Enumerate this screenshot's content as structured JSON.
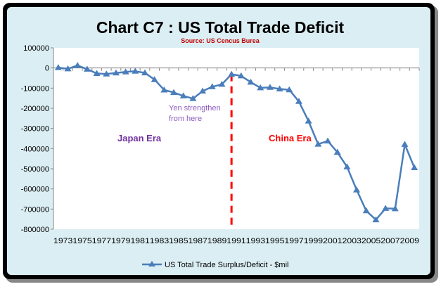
{
  "chart_data": {
    "type": "line",
    "title": "Chart C7 : US Total Trade Deficit",
    "subtitle": "Source: US Cencus Burea",
    "xlabel": "",
    "ylabel": "",
    "ylim": [
      -800000,
      100000
    ],
    "yticks": [
      100000,
      0,
      -100000,
      -200000,
      -300000,
      -400000,
      -500000,
      -600000,
      -700000,
      -800000
    ],
    "ytick_labels": [
      "100000",
      "0",
      "-100000",
      "-200000",
      "-300000",
      "-400000",
      "-500000",
      "-600000",
      "-700000",
      "-800000"
    ],
    "x": [
      1973,
      1974,
      1975,
      1976,
      1977,
      1978,
      1979,
      1980,
      1981,
      1982,
      1983,
      1984,
      1985,
      1986,
      1987,
      1988,
      1989,
      1990,
      1991,
      1992,
      1993,
      1994,
      1995,
      1996,
      1997,
      1998,
      1999,
      2000,
      2001,
      2002,
      2003,
      2004,
      2005,
      2006,
      2007,
      2008,
      2009,
      2010
    ],
    "xtick_labels": [
      "1973",
      "1975",
      "1977",
      "1979",
      "1981",
      "1983",
      "1985",
      "1987",
      "1989",
      "1991",
      "1993",
      "1995",
      "1997",
      "1999",
      "2001",
      "2003",
      "2005",
      "2007",
      "2009"
    ],
    "grid": false,
    "legend_position": "bottom",
    "series": [
      {
        "name": "US Total Trade Surplus/Deficit - $mil",
        "color": "#4a7ebb",
        "values": [
          1900,
          -4300,
          12400,
          -6100,
          -27200,
          -29800,
          -24600,
          -19400,
          -16200,
          -24200,
          -57800,
          -109100,
          -121900,
          -138500,
          -151700,
          -114600,
          -93100,
          -80900,
          -31100,
          -39200,
          -70300,
          -98500,
          -96400,
          -104100,
          -108300,
          -166100,
          -263200,
          -378300,
          -362300,
          -418200,
          -490500,
          -605000,
          -708600,
          -753300,
          -696700,
          -698300,
          -379200,
          -494700
        ]
      }
    ],
    "annotations": {
      "yen": [
        "Yen strengthen",
        "from here"
      ],
      "japan": "Japan Era",
      "china": "China Era",
      "divider_year": 1991
    },
    "colors": {
      "background": "#dbeef4",
      "divider": "#ff0000",
      "japan": "#7030a0",
      "china": "#ff0000",
      "yen": "#8e5cc0",
      "source": "#c00000"
    }
  }
}
